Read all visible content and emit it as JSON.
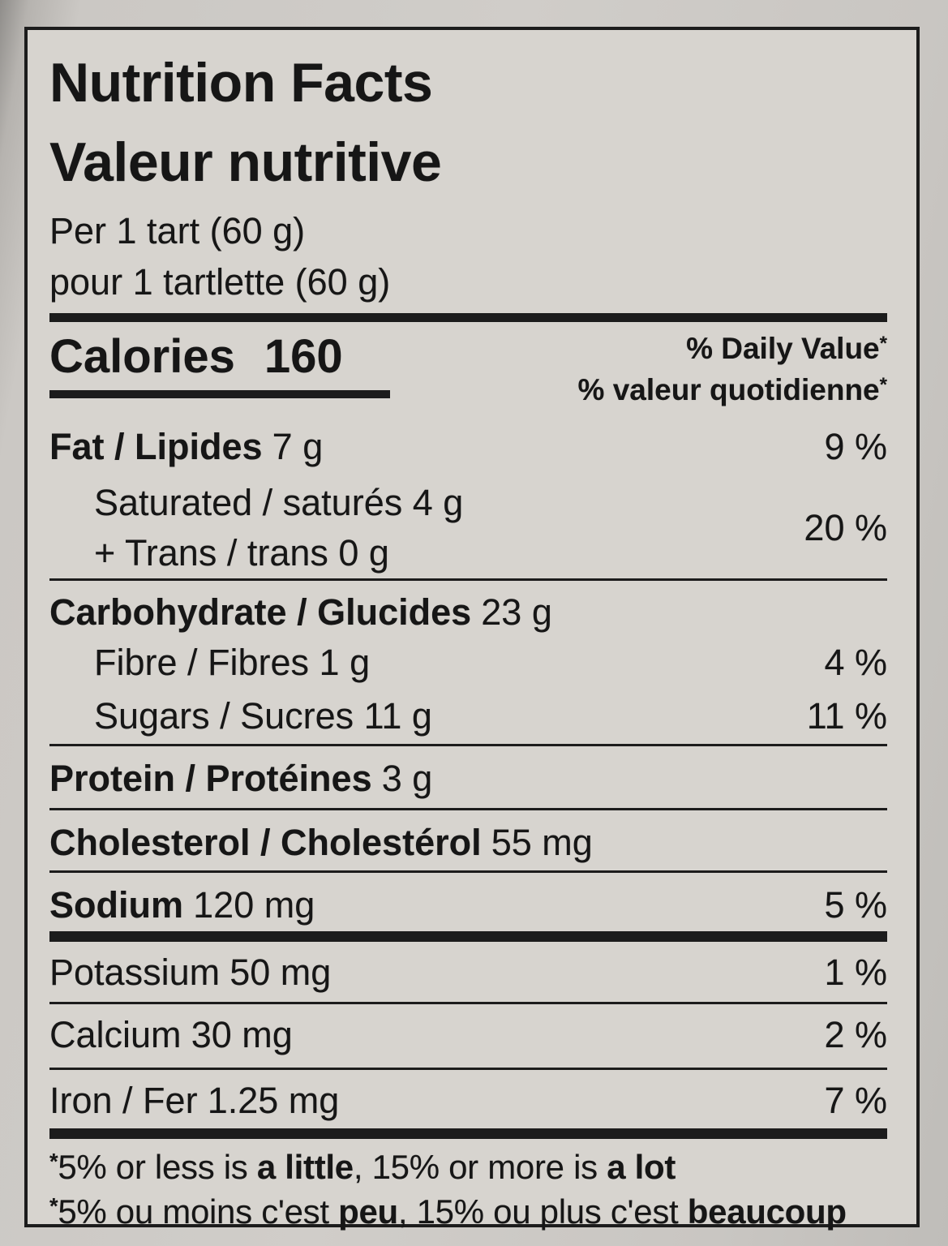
{
  "label": {
    "title_en": "Nutrition Facts",
    "title_fr": "Valeur nutritive",
    "serving_en": "Per 1 tart (60 g)",
    "serving_fr": "pour 1 tartlette (60 g)",
    "calories": {
      "label": "Calories",
      "value": "160"
    },
    "daily_value_header": {
      "en": "% Daily Value",
      "fr": "% valeur quotidienne",
      "asterisk": "*"
    },
    "nutrients": {
      "fat": {
        "label": "Fat / Lipides",
        "amount": "7 g",
        "dv": "9 %"
      },
      "saturated_trans": {
        "line1": "Saturated / saturés 4 g",
        "line2": "+ Trans / trans 0 g",
        "dv": "20 %"
      },
      "carbohydrate": {
        "label": "Carbohydrate / Glucides",
        "amount": "23 g",
        "dv": ""
      },
      "fibre": {
        "label": "Fibre / Fibres 1 g",
        "dv": "4 %"
      },
      "sugars": {
        "label": "Sugars / Sucres 11 g",
        "dv": "11 %"
      },
      "protein": {
        "label": "Protein / Protéines",
        "amount": "3 g",
        "dv": ""
      },
      "cholesterol": {
        "label": "Cholesterol / Cholestérol",
        "amount": "55 mg",
        "dv": ""
      },
      "sodium": {
        "label": "Sodium",
        "amount": "120 mg",
        "dv": "5 %"
      },
      "potassium": {
        "label": "Potassium",
        "amount": "50 mg",
        "dv": "1 %"
      },
      "calcium": {
        "label": "Calcium",
        "amount": "30 mg",
        "dv": "2 %"
      },
      "iron": {
        "label": "Iron / Fer",
        "amount": "1.25 mg",
        "dv": "7 %"
      }
    },
    "footnote": {
      "en": {
        "star": "*",
        "t1": "5% or less is ",
        "b1": "a little",
        "t2": ", 15% or more is ",
        "b2": "a lot"
      },
      "fr": {
        "star": "*",
        "t1": "5% ou moins c'est ",
        "b1": "peu",
        "t2": ", 15% ou plus c'est ",
        "b2": "beaucoup"
      }
    },
    "colors": {
      "background": "#d7d4cf",
      "text": "#161616",
      "rule": "#1c1c1c"
    }
  }
}
